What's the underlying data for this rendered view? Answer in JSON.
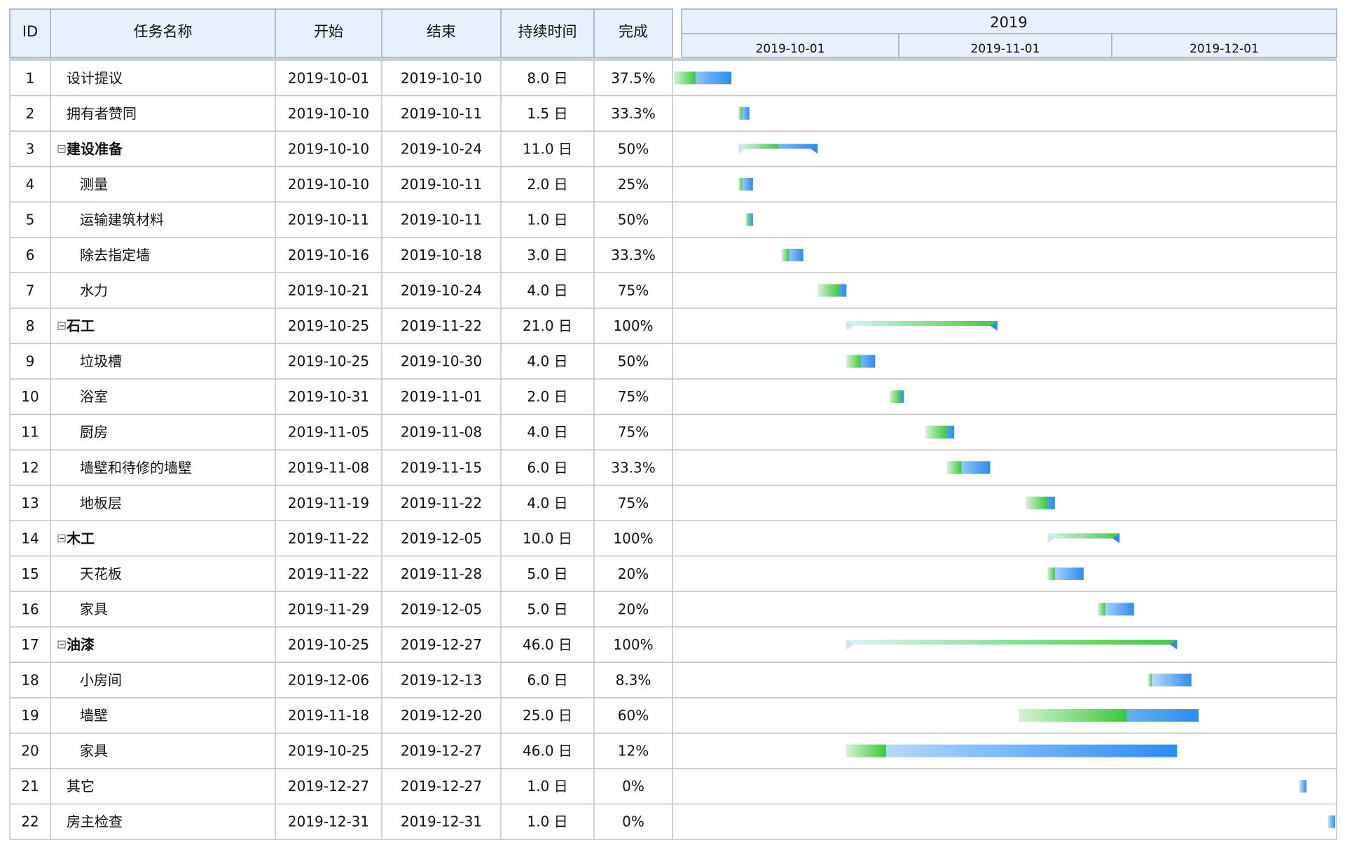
{
  "header": {
    "columns": [
      "ID",
      "任务名称",
      "开始",
      "结束",
      "持续时间",
      "完成"
    ],
    "year": "2019",
    "months": [
      "2019-10-01",
      "2019-11-01",
      "2019-12-01"
    ]
  },
  "colors": {
    "header_bg": "#e8f1fb",
    "complete_start": "#d5f2d5",
    "complete_end": "#3cc83c",
    "remain_start": "#c7e2fb",
    "remain_end": "#2a8cf0",
    "summary_done": "#45c845",
    "summary_mark": "#2a8cf0"
  },
  "chart_data": {
    "type": "gantt",
    "tasks": [
      {
        "id": "1",
        "name": "设计提议",
        "start": "2019-10-01",
        "end": "2019-10-10",
        "duration": "8.0 日",
        "progress": "37.5%",
        "level": 0,
        "summary": false
      },
      {
        "id": "2",
        "name": "拥有者赞同",
        "start": "2019-10-10",
        "end": "2019-10-11",
        "duration": "1.5 日",
        "progress": "33.3%",
        "level": 0,
        "summary": false
      },
      {
        "id": "3",
        "name": "建设准备",
        "start": "2019-10-10",
        "end": "2019-10-24",
        "duration": "11.0 日",
        "progress": "50%",
        "level": 0,
        "summary": true
      },
      {
        "id": "4",
        "name": "测量",
        "start": "2019-10-10",
        "end": "2019-10-11",
        "duration": "2.0 日",
        "progress": "25%",
        "level": 1,
        "summary": false
      },
      {
        "id": "5",
        "name": "运输建筑材料",
        "start": "2019-10-11",
        "end": "2019-10-11",
        "duration": "1.0 日",
        "progress": "50%",
        "level": 1,
        "summary": false
      },
      {
        "id": "6",
        "name": "除去指定墙",
        "start": "2019-10-16",
        "end": "2019-10-18",
        "duration": "3.0 日",
        "progress": "33.3%",
        "level": 1,
        "summary": false
      },
      {
        "id": "7",
        "name": "水力",
        "start": "2019-10-21",
        "end": "2019-10-24",
        "duration": "4.0 日",
        "progress": "75%",
        "level": 1,
        "summary": false
      },
      {
        "id": "8",
        "name": "石工",
        "start": "2019-10-25",
        "end": "2019-11-22",
        "duration": "21.0 日",
        "progress": "100%",
        "level": 0,
        "summary": true
      },
      {
        "id": "9",
        "name": "垃圾槽",
        "start": "2019-10-25",
        "end": "2019-10-30",
        "duration": "4.0 日",
        "progress": "50%",
        "level": 1,
        "summary": false
      },
      {
        "id": "10",
        "name": "浴室",
        "start": "2019-10-31",
        "end": "2019-11-01",
        "duration": "2.0 日",
        "progress": "75%",
        "level": 1,
        "summary": false
      },
      {
        "id": "11",
        "name": "厨房",
        "start": "2019-11-05",
        "end": "2019-11-08",
        "duration": "4.0 日",
        "progress": "75%",
        "level": 1,
        "summary": false
      },
      {
        "id": "12",
        "name": "墙壁和待修的墙壁",
        "start": "2019-11-08",
        "end": "2019-11-15",
        "duration": "6.0 日",
        "progress": "33.3%",
        "level": 1,
        "summary": false
      },
      {
        "id": "13",
        "name": "地板层",
        "start": "2019-11-19",
        "end": "2019-11-22",
        "duration": "4.0 日",
        "progress": "75%",
        "level": 1,
        "summary": false
      },
      {
        "id": "14",
        "name": "木工",
        "start": "2019-11-22",
        "end": "2019-12-05",
        "duration": "10.0 日",
        "progress": "100%",
        "level": 0,
        "summary": true
      },
      {
        "id": "15",
        "name": "天花板",
        "start": "2019-11-22",
        "end": "2019-11-28",
        "duration": "5.0 日",
        "progress": "20%",
        "level": 1,
        "summary": false
      },
      {
        "id": "16",
        "name": "家具",
        "start": "2019-11-29",
        "end": "2019-12-05",
        "duration": "5.0 日",
        "progress": "20%",
        "level": 1,
        "summary": false
      },
      {
        "id": "17",
        "name": "油漆",
        "start": "2019-10-25",
        "end": "2019-12-27",
        "duration": "46.0 日",
        "progress": "100%",
        "level": 0,
        "summary": true
      },
      {
        "id": "18",
        "name": "小房间",
        "start": "2019-12-06",
        "end": "2019-12-13",
        "duration": "6.0 日",
        "progress": "8.3%",
        "level": 1,
        "summary": false
      },
      {
        "id": "19",
        "name": "墙壁",
        "start": "2019-11-18",
        "end": "2019-12-20",
        "duration": "25.0 日",
        "progress": "60%",
        "level": 1,
        "summary": false
      },
      {
        "id": "20",
        "name": "家具",
        "start": "2019-10-25",
        "end": "2019-12-27",
        "duration": "46.0 日",
        "progress": "12%",
        "level": 1,
        "summary": false
      },
      {
        "id": "21",
        "name": "其它",
        "start": "2019-12-27",
        "end": "2019-12-27",
        "duration": "1.0 日",
        "progress": "0%",
        "level": 0,
        "summary": false
      },
      {
        "id": "22",
        "name": "房主检查",
        "start": "2019-12-31",
        "end": "2019-12-31",
        "duration": "1.0 日",
        "progress": "0%",
        "level": 0,
        "summary": false
      }
    ]
  }
}
